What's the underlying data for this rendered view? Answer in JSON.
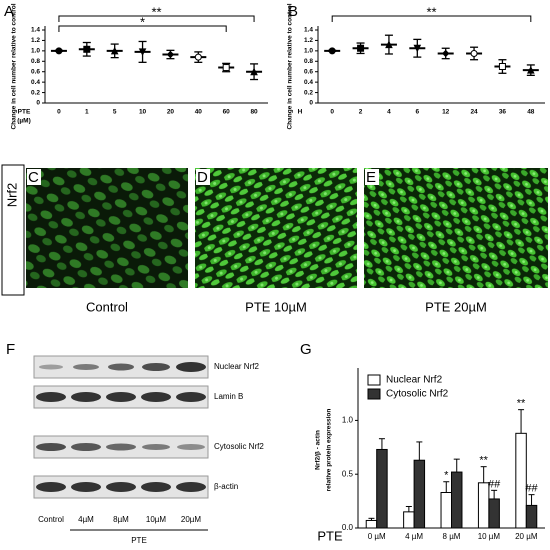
{
  "labels": [
    "A",
    "B",
    "C",
    "D",
    "E",
    "F",
    "G"
  ],
  "images": {
    "row_label": "Nrf2",
    "captions": [
      "Control",
      "PTE 10µM",
      "PTE 20µM"
    ]
  },
  "blot": {
    "rows": [
      "Nuclear Nrf2",
      "Lamin B",
      "Cytosolic Nrf2",
      "β-actin"
    ],
    "lanes": [
      "Control",
      "4µM",
      "8µM",
      "10µM",
      "20µM"
    ],
    "group": "PTE"
  },
  "chart_data": [
    {
      "type": "scatter",
      "ylabel": [
        "Change in cell number relative to control"
      ],
      "xlabel": [
        "PTE",
        "(µM)"
      ],
      "categories": [
        "0",
        "1",
        "5",
        "10",
        "20",
        "40",
        "60",
        "80"
      ],
      "values": [
        1.0,
        1.03,
        1.0,
        0.98,
        0.93,
        0.88,
        0.68,
        0.6
      ],
      "errors": [
        0.01,
        0.13,
        0.13,
        0.2,
        0.08,
        0.1,
        0.08,
        0.15
      ],
      "color": "#000000",
      "ylim": [
        0,
        1.4
      ],
      "yticks": [
        0,
        0.2,
        0.4,
        0.6,
        0.8,
        {
          "value": 1,
          "label": "1.0"
        },
        1.2,
        1.4
      ],
      "annotations": [
        {
          "text": "**",
          "from": "0",
          "to": "80"
        },
        {
          "text": "*",
          "from": "0",
          "to": "60"
        }
      ]
    },
    {
      "type": "scatter",
      "ylabel": [
        "Change in cell number relative to control"
      ],
      "xlabel": [
        "H"
      ],
      "categories": [
        "0",
        "2",
        "4",
        "6",
        "12",
        "24",
        "36",
        "48"
      ],
      "values": [
        1.0,
        1.05,
        1.12,
        1.05,
        0.95,
        0.95,
        0.7,
        0.63
      ],
      "errors": [
        0.01,
        0.1,
        0.18,
        0.17,
        0.1,
        0.12,
        0.13,
        0.1
      ],
      "color": "#000000",
      "ylim": [
        0,
        1.4
      ],
      "yticks": [
        0,
        0.2,
        0.4,
        0.6,
        0.8,
        {
          "value": 1,
          "label": "1.0"
        },
        1.2,
        1.4
      ],
      "annotations": [
        {
          "text": "**",
          "from": "0",
          "to": "48"
        }
      ]
    },
    {
      "type": "bar",
      "ylabel": [
        "Nrf2/β - actin",
        "relative protein expression"
      ],
      "xlabel": [
        "PTE"
      ],
      "categories": [
        "0 µM",
        "4 µM",
        "8 µM",
        "10 µM",
        "20 µM"
      ],
      "series": [
        {
          "name": "Nuclear Nrf2",
          "color": "#ffffff",
          "values": [
            0.07,
            0.15,
            0.33,
            0.42,
            0.88
          ],
          "errors": [
            0.02,
            0.05,
            0.1,
            0.15,
            0.22
          ]
        },
        {
          "name": "Cytosolic Nrf2",
          "color": "#333333",
          "values": [
            0.73,
            0.63,
            0.52,
            0.27,
            0.21
          ],
          "errors": [
            0.1,
            0.17,
            0.12,
            0.08,
            0.1
          ]
        }
      ],
      "ylim": [
        0,
        1.45
      ],
      "yticks": [
        {
          "value": 0,
          "label": "0.0"
        },
        0.5,
        {
          "value": 1,
          "label": "1.0"
        }
      ],
      "legend": "upper left",
      "annotations": [
        {
          "text": "*",
          "category": "8 µM",
          "series": "Nuclear Nrf2"
        },
        {
          "text": "**",
          "category": "10 µM",
          "series": "Nuclear Nrf2"
        },
        {
          "text": "**",
          "category": "20 µM",
          "series": "Nuclear Nrf2"
        },
        {
          "text": "##",
          "category": "10 µM",
          "series": "Cytosolic Nrf2"
        },
        {
          "text": "##",
          "category": "20 µM",
          "series": "Cytosolic Nrf2"
        }
      ]
    }
  ]
}
